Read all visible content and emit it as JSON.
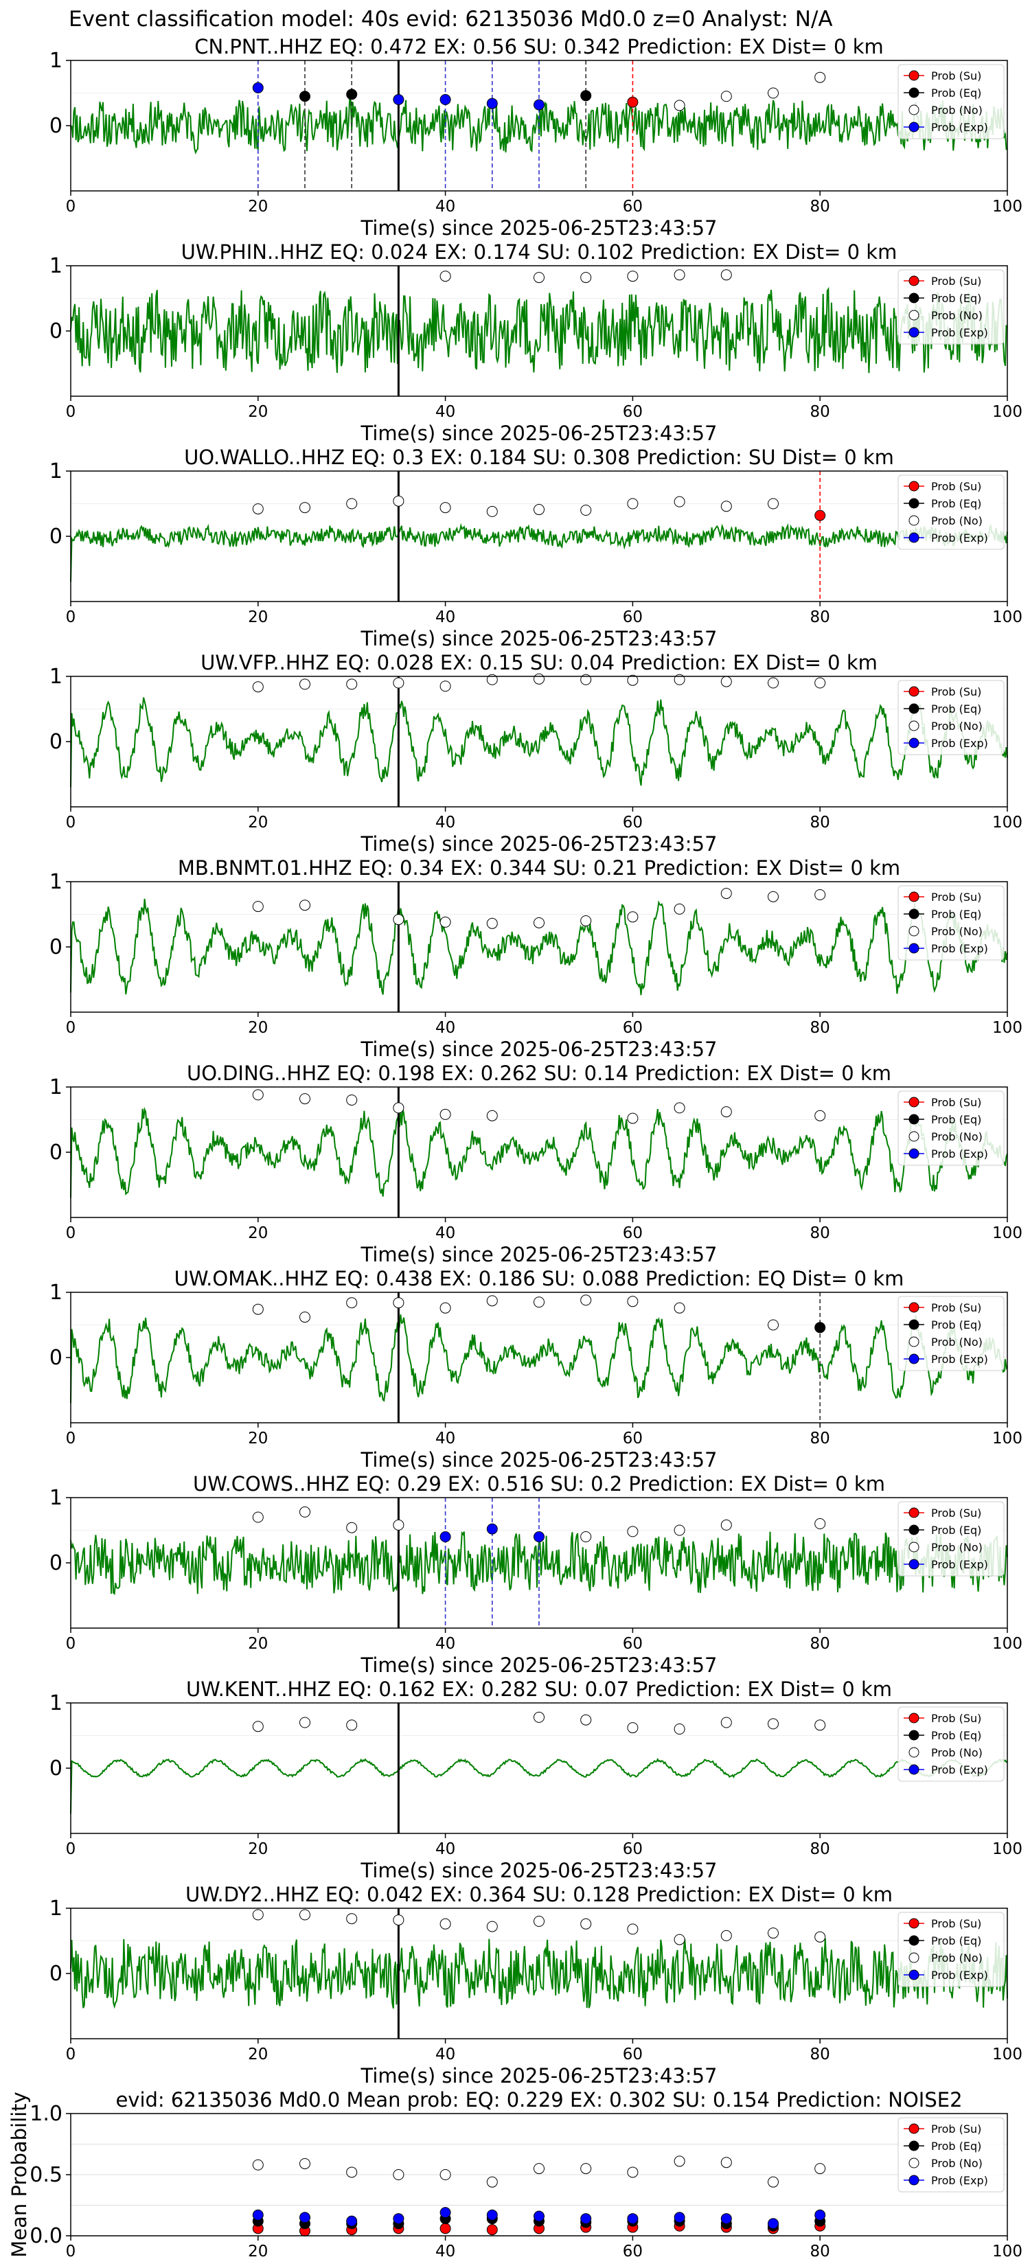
{
  "figure": {
    "suptitle": "Event classification model: 40s evid: 62135036 Md0.0 z=0 Analyst: N/A",
    "colors": {
      "waveform": "#008000",
      "su": "#ff0000",
      "eq": "#000000",
      "no": "#ffffff",
      "exp": "#0000ff",
      "arrival_line": "#000000"
    },
    "legend_labels": [
      "Prob (Su)",
      "Prob (Eq)",
      "Prob (No)",
      "Prob (Exp)"
    ]
  },
  "chart_data": [
    {
      "type": "line",
      "title": "CN.PNT..HHZ   EQ: 0.472  EX: 0.56  SU: 0.342   Prediction: EX    Dist= 0 km",
      "xlabel": "Time(s) since 2025-06-25T23:43:57",
      "xlim": [
        0,
        100
      ],
      "ylim": [
        -1,
        1
      ],
      "xticks": [
        "0",
        "20",
        "40",
        "60",
        "80",
        "100"
      ],
      "yticks": [
        "0",
        "1"
      ],
      "legend": "top-right",
      "arrival_time": 35,
      "waveform": {
        "style": "noise",
        "amp": 0.32,
        "seed": 11
      },
      "x": [
        20,
        25,
        30,
        35,
        40,
        45,
        50,
        55,
        60,
        65,
        70,
        75,
        80
      ],
      "points": [
        {
          "x": 20,
          "y": 0.58,
          "cls": "exp"
        },
        {
          "x": 25,
          "y": 0.45,
          "cls": "eq"
        },
        {
          "x": 30,
          "y": 0.48,
          "cls": "eq"
        },
        {
          "x": 35,
          "y": 0.4,
          "cls": "exp"
        },
        {
          "x": 40,
          "y": 0.4,
          "cls": "exp"
        },
        {
          "x": 45,
          "y": 0.34,
          "cls": "exp"
        },
        {
          "x": 50,
          "y": 0.32,
          "cls": "exp"
        },
        {
          "x": 55,
          "y": 0.46,
          "cls": "eq"
        },
        {
          "x": 60,
          "y": 0.36,
          "cls": "su"
        },
        {
          "x": 65,
          "y": 0.31,
          "cls": "no"
        },
        {
          "x": 70,
          "y": 0.45,
          "cls": "no"
        },
        {
          "x": 75,
          "y": 0.5,
          "cls": "no"
        },
        {
          "x": 80,
          "y": 0.74,
          "cls": "no"
        }
      ]
    },
    {
      "type": "line",
      "title": "UW.PHIN..HHZ   EQ: 0.024  EX: 0.174  SU: 0.102   Prediction: EX    Dist= 0 km",
      "xlabel": "Time(s) since 2025-06-25T23:43:57",
      "xlim": [
        0,
        100
      ],
      "ylim": [
        -1,
        1
      ],
      "xticks": [
        "0",
        "20",
        "40",
        "60",
        "80",
        "100"
      ],
      "yticks": [
        "0",
        "1"
      ],
      "legend": "top-right",
      "arrival_time": 35,
      "waveform": {
        "style": "noise",
        "amp": 0.5,
        "seed": 23
      },
      "x": [
        40,
        50,
        55,
        60,
        65,
        70
      ],
      "points": [
        {
          "x": 40,
          "y": 0.84,
          "cls": "no"
        },
        {
          "x": 50,
          "y": 0.82,
          "cls": "no"
        },
        {
          "x": 55,
          "y": 0.82,
          "cls": "no"
        },
        {
          "x": 60,
          "y": 0.84,
          "cls": "no"
        },
        {
          "x": 65,
          "y": 0.86,
          "cls": "no"
        },
        {
          "x": 70,
          "y": 0.86,
          "cls": "no"
        }
      ]
    },
    {
      "type": "line",
      "title": "UO.WALLO..HHZ   EQ: 0.3  EX: 0.184  SU: 0.308   Prediction: SU    Dist= 0 km",
      "xlabel": "Time(s) since 2025-06-25T23:43:57",
      "xlim": [
        0,
        100
      ],
      "ylim": [
        -1,
        1
      ],
      "xticks": [
        "0",
        "20",
        "40",
        "60",
        "80",
        "100"
      ],
      "yticks": [
        "0",
        "1"
      ],
      "legend": "top-right",
      "arrival_time": 35,
      "waveform": {
        "style": "quiet",
        "amp": 0.12,
        "seed": 37
      },
      "x": [
        20,
        25,
        30,
        35,
        40,
        45,
        50,
        55,
        60,
        65,
        70,
        75,
        80
      ],
      "points": [
        {
          "x": 20,
          "y": 0.42,
          "cls": "no"
        },
        {
          "x": 25,
          "y": 0.44,
          "cls": "no"
        },
        {
          "x": 30,
          "y": 0.5,
          "cls": "no"
        },
        {
          "x": 35,
          "y": 0.54,
          "cls": "no"
        },
        {
          "x": 40,
          "y": 0.44,
          "cls": "no"
        },
        {
          "x": 45,
          "y": 0.38,
          "cls": "no"
        },
        {
          "x": 50,
          "y": 0.41,
          "cls": "no"
        },
        {
          "x": 55,
          "y": 0.4,
          "cls": "no"
        },
        {
          "x": 60,
          "y": 0.5,
          "cls": "no"
        },
        {
          "x": 65,
          "y": 0.53,
          "cls": "no"
        },
        {
          "x": 70,
          "y": 0.46,
          "cls": "no"
        },
        {
          "x": 75,
          "y": 0.5,
          "cls": "no"
        },
        {
          "x": 80,
          "y": 0.32,
          "cls": "su"
        }
      ]
    },
    {
      "type": "line",
      "title": "UW.VFP..HHZ   EQ: 0.028  EX: 0.15  SU: 0.04   Prediction: EX    Dist= 0 km",
      "xlabel": "Time(s) since 2025-06-25T23:43:57",
      "xlim": [
        0,
        100
      ],
      "ylim": [
        -1,
        1
      ],
      "xticks": [
        "0",
        "20",
        "40",
        "60",
        "80",
        "100"
      ],
      "yticks": [
        "0",
        "1"
      ],
      "legend": "top-right",
      "arrival_time": 35,
      "waveform": {
        "style": "wave",
        "amp": 0.55,
        "seed": 41
      },
      "x": [
        20,
        25,
        30,
        35,
        40,
        45,
        50,
        55,
        60,
        65,
        70,
        75,
        80
      ],
      "points": [
        {
          "x": 20,
          "y": 0.84,
          "cls": "no"
        },
        {
          "x": 25,
          "y": 0.88,
          "cls": "no"
        },
        {
          "x": 30,
          "y": 0.88,
          "cls": "no"
        },
        {
          "x": 35,
          "y": 0.9,
          "cls": "no"
        },
        {
          "x": 40,
          "y": 0.85,
          "cls": "no"
        },
        {
          "x": 45,
          "y": 0.95,
          "cls": "no"
        },
        {
          "x": 50,
          "y": 0.96,
          "cls": "no"
        },
        {
          "x": 55,
          "y": 0.95,
          "cls": "no"
        },
        {
          "x": 60,
          "y": 0.94,
          "cls": "no"
        },
        {
          "x": 65,
          "y": 0.95,
          "cls": "no"
        },
        {
          "x": 70,
          "y": 0.92,
          "cls": "no"
        },
        {
          "x": 75,
          "y": 0.9,
          "cls": "no"
        },
        {
          "x": 80,
          "y": 0.9,
          "cls": "no"
        }
      ]
    },
    {
      "type": "line",
      "title": "MB.BNMT.01.HHZ   EQ: 0.34  EX: 0.344  SU: 0.21   Prediction: EX    Dist= 0 km",
      "xlabel": "Time(s) since 2025-06-25T23:43:57",
      "xlim": [
        0,
        100
      ],
      "ylim": [
        -1,
        1
      ],
      "xticks": [
        "0",
        "20",
        "40",
        "60",
        "80",
        "100"
      ],
      "yticks": [
        "0",
        "1"
      ],
      "legend": "top-right",
      "arrival_time": 35,
      "waveform": {
        "style": "wave",
        "amp": 0.6,
        "seed": 53
      },
      "x": [
        20,
        25,
        35,
        40,
        45,
        50,
        55,
        60,
        65,
        70,
        75,
        80
      ],
      "points": [
        {
          "x": 20,
          "y": 0.62,
          "cls": "no"
        },
        {
          "x": 25,
          "y": 0.64,
          "cls": "no"
        },
        {
          "x": 35,
          "y": 0.42,
          "cls": "no"
        },
        {
          "x": 40,
          "y": 0.38,
          "cls": "no"
        },
        {
          "x": 45,
          "y": 0.36,
          "cls": "no"
        },
        {
          "x": 50,
          "y": 0.37,
          "cls": "no"
        },
        {
          "x": 55,
          "y": 0.4,
          "cls": "no"
        },
        {
          "x": 60,
          "y": 0.46,
          "cls": "no"
        },
        {
          "x": 65,
          "y": 0.58,
          "cls": "no"
        },
        {
          "x": 70,
          "y": 0.82,
          "cls": "no"
        },
        {
          "x": 75,
          "y": 0.77,
          "cls": "no"
        },
        {
          "x": 80,
          "y": 0.8,
          "cls": "no"
        }
      ]
    },
    {
      "type": "line",
      "title": "UO.DING..HHZ   EQ: 0.198  EX: 0.262  SU: 0.14   Prediction: EX    Dist= 0 km",
      "xlabel": "Time(s) since 2025-06-25T23:43:57",
      "xlim": [
        0,
        100
      ],
      "ylim": [
        -1,
        1
      ],
      "xticks": [
        "0",
        "20",
        "40",
        "60",
        "80",
        "100"
      ],
      "yticks": [
        "0",
        "1"
      ],
      "legend": "top-right",
      "arrival_time": 35,
      "waveform": {
        "style": "wave",
        "amp": 0.55,
        "seed": 67
      },
      "x": [
        20,
        25,
        30,
        35,
        40,
        45,
        60,
        65,
        70,
        80
      ],
      "points": [
        {
          "x": 20,
          "y": 0.88,
          "cls": "no"
        },
        {
          "x": 25,
          "y": 0.82,
          "cls": "no"
        },
        {
          "x": 30,
          "y": 0.8,
          "cls": "no"
        },
        {
          "x": 35,
          "y": 0.68,
          "cls": "no"
        },
        {
          "x": 40,
          "y": 0.58,
          "cls": "no"
        },
        {
          "x": 45,
          "y": 0.56,
          "cls": "no"
        },
        {
          "x": 60,
          "y": 0.52,
          "cls": "no"
        },
        {
          "x": 65,
          "y": 0.68,
          "cls": "no"
        },
        {
          "x": 70,
          "y": 0.62,
          "cls": "no"
        },
        {
          "x": 80,
          "y": 0.56,
          "cls": "no"
        }
      ]
    },
    {
      "type": "line",
      "title": "UW.OMAK..HHZ   EQ: 0.438  EX: 0.186  SU: 0.088   Prediction: EQ    Dist= 0 km",
      "xlabel": "Time(s) since 2025-06-25T23:43:57",
      "xlim": [
        0,
        100
      ],
      "ylim": [
        -1,
        1
      ],
      "xticks": [
        "0",
        "20",
        "40",
        "60",
        "80",
        "100"
      ],
      "yticks": [
        "0",
        "1"
      ],
      "legend": "top-right",
      "arrival_time": 35,
      "waveform": {
        "style": "wave",
        "amp": 0.55,
        "seed": 79
      },
      "x": [
        20,
        25,
        30,
        35,
        40,
        45,
        50,
        55,
        60,
        65,
        75,
        80
      ],
      "points": [
        {
          "x": 20,
          "y": 0.74,
          "cls": "no"
        },
        {
          "x": 25,
          "y": 0.62,
          "cls": "no"
        },
        {
          "x": 30,
          "y": 0.84,
          "cls": "no"
        },
        {
          "x": 35,
          "y": 0.84,
          "cls": "no"
        },
        {
          "x": 40,
          "y": 0.76,
          "cls": "no"
        },
        {
          "x": 45,
          "y": 0.87,
          "cls": "no"
        },
        {
          "x": 50,
          "y": 0.85,
          "cls": "no"
        },
        {
          "x": 55,
          "y": 0.88,
          "cls": "no"
        },
        {
          "x": 60,
          "y": 0.86,
          "cls": "no"
        },
        {
          "x": 65,
          "y": 0.76,
          "cls": "no"
        },
        {
          "x": 75,
          "y": 0.5,
          "cls": "no"
        },
        {
          "x": 80,
          "y": 0.46,
          "cls": "eq"
        }
      ]
    },
    {
      "type": "line",
      "title": "UW.COWS..HHZ   EQ: 0.29  EX: 0.516  SU: 0.2   Prediction: EX    Dist= 0 km",
      "xlabel": "Time(s) since 2025-06-25T23:43:57",
      "xlim": [
        0,
        100
      ],
      "ylim": [
        -1,
        1
      ],
      "xticks": [
        "0",
        "20",
        "40",
        "60",
        "80",
        "100"
      ],
      "yticks": [
        "0",
        "1"
      ],
      "legend": "top-right",
      "arrival_time": 35,
      "waveform": {
        "style": "noise",
        "amp": 0.38,
        "seed": 83
      },
      "x": [
        20,
        25,
        30,
        35,
        40,
        45,
        50,
        55,
        60,
        65,
        70,
        80
      ],
      "points": [
        {
          "x": 20,
          "y": 0.7,
          "cls": "no"
        },
        {
          "x": 25,
          "y": 0.78,
          "cls": "no"
        },
        {
          "x": 30,
          "y": 0.54,
          "cls": "no"
        },
        {
          "x": 35,
          "y": 0.58,
          "cls": "no"
        },
        {
          "x": 40,
          "y": 0.4,
          "cls": "exp"
        },
        {
          "x": 45,
          "y": 0.52,
          "cls": "exp"
        },
        {
          "x": 50,
          "y": 0.4,
          "cls": "exp"
        },
        {
          "x": 55,
          "y": 0.4,
          "cls": "no"
        },
        {
          "x": 60,
          "y": 0.48,
          "cls": "no"
        },
        {
          "x": 65,
          "y": 0.5,
          "cls": "no"
        },
        {
          "x": 70,
          "y": 0.58,
          "cls": "no"
        },
        {
          "x": 80,
          "y": 0.6,
          "cls": "no"
        }
      ]
    },
    {
      "type": "line",
      "title": "UW.KENT..HHZ   EQ: 0.162  EX: 0.282  SU: 0.07   Prediction: EX    Dist= 0 km",
      "xlabel": "Time(s) since 2025-06-25T23:43:57",
      "xlim": [
        0,
        100
      ],
      "ylim": [
        -1,
        1
      ],
      "xticks": [
        "0",
        "20",
        "40",
        "60",
        "80",
        "100"
      ],
      "yticks": [
        "0",
        "1"
      ],
      "legend": "top-right",
      "arrival_time": 35,
      "waveform": {
        "style": "smooth",
        "amp": 0.12,
        "seed": 97
      },
      "x": [
        20,
        25,
        30,
        50,
        55,
        60,
        65,
        70,
        75,
        80
      ],
      "points": [
        {
          "x": 20,
          "y": 0.64,
          "cls": "no"
        },
        {
          "x": 25,
          "y": 0.7,
          "cls": "no"
        },
        {
          "x": 30,
          "y": 0.66,
          "cls": "no"
        },
        {
          "x": 50,
          "y": 0.78,
          "cls": "no"
        },
        {
          "x": 55,
          "y": 0.74,
          "cls": "no"
        },
        {
          "x": 60,
          "y": 0.62,
          "cls": "no"
        },
        {
          "x": 65,
          "y": 0.6,
          "cls": "no"
        },
        {
          "x": 70,
          "y": 0.7,
          "cls": "no"
        },
        {
          "x": 75,
          "y": 0.68,
          "cls": "no"
        },
        {
          "x": 80,
          "y": 0.66,
          "cls": "no"
        }
      ]
    },
    {
      "type": "line",
      "title": "UW.DY2..HHZ   EQ: 0.042  EX: 0.364  SU: 0.128   Prediction: EX    Dist= 0 km",
      "xlabel": "Time(s) since 2025-06-25T23:43:57",
      "xlim": [
        0,
        100
      ],
      "ylim": [
        -1,
        1
      ],
      "xticks": [
        "0",
        "20",
        "40",
        "60",
        "80",
        "100"
      ],
      "yticks": [
        "0",
        "1"
      ],
      "legend": "top-right",
      "arrival_time": 35,
      "waveform": {
        "style": "noise",
        "amp": 0.42,
        "seed": 101
      },
      "x": [
        20,
        25,
        30,
        35,
        40,
        45,
        50,
        55,
        60,
        65,
        70,
        75,
        80
      ],
      "points": [
        {
          "x": 20,
          "y": 0.9,
          "cls": "no"
        },
        {
          "x": 25,
          "y": 0.9,
          "cls": "no"
        },
        {
          "x": 30,
          "y": 0.84,
          "cls": "no"
        },
        {
          "x": 35,
          "y": 0.82,
          "cls": "no"
        },
        {
          "x": 40,
          "y": 0.76,
          "cls": "no"
        },
        {
          "x": 45,
          "y": 0.72,
          "cls": "no"
        },
        {
          "x": 50,
          "y": 0.8,
          "cls": "no"
        },
        {
          "x": 55,
          "y": 0.76,
          "cls": "no"
        },
        {
          "x": 60,
          "y": 0.68,
          "cls": "no"
        },
        {
          "x": 65,
          "y": 0.52,
          "cls": "no"
        },
        {
          "x": 70,
          "y": 0.58,
          "cls": "no"
        },
        {
          "x": 75,
          "y": 0.62,
          "cls": "no"
        },
        {
          "x": 80,
          "y": 0.56,
          "cls": "no"
        }
      ]
    },
    {
      "type": "scatter",
      "title": "evid: 62135036  Md0.0   Mean prob:   EQ: 0.229  EX: 0.302  SU: 0.154   Prediction: NOISE2",
      "ylabel": "Mean Probability",
      "xlim": [
        0,
        100
      ],
      "ylim": [
        0,
        1
      ],
      "xticks": [
        "0",
        "20",
        "40",
        "60",
        "80",
        "100"
      ],
      "yticks": [
        "0.0",
        "0.5",
        "1.0"
      ],
      "legend": "top-right",
      "grid": true,
      "x": [
        20,
        25,
        30,
        35,
        40,
        45,
        50,
        55,
        60,
        65,
        70,
        75,
        80
      ],
      "series": [
        {
          "name": "Prob (Su)",
          "cls": "su",
          "values": [
            0.06,
            0.04,
            0.05,
            0.06,
            0.06,
            0.05,
            0.06,
            0.07,
            0.07,
            0.08,
            0.07,
            0.06,
            0.08
          ]
        },
        {
          "name": "Prob (Eq)",
          "cls": "eq",
          "values": [
            0.12,
            0.1,
            0.1,
            0.1,
            0.14,
            0.14,
            0.12,
            0.11,
            0.12,
            0.12,
            0.1,
            0.08,
            0.12
          ]
        },
        {
          "name": "Prob (No)",
          "cls": "no",
          "values": [
            0.58,
            0.59,
            0.52,
            0.5,
            0.5,
            0.44,
            0.55,
            0.55,
            0.52,
            0.61,
            0.6,
            0.44,
            0.55
          ]
        },
        {
          "name": "Prob (Exp)",
          "cls": "exp",
          "values": [
            0.17,
            0.15,
            0.12,
            0.14,
            0.19,
            0.17,
            0.16,
            0.14,
            0.14,
            0.15,
            0.14,
            0.1,
            0.17
          ]
        }
      ]
    }
  ]
}
